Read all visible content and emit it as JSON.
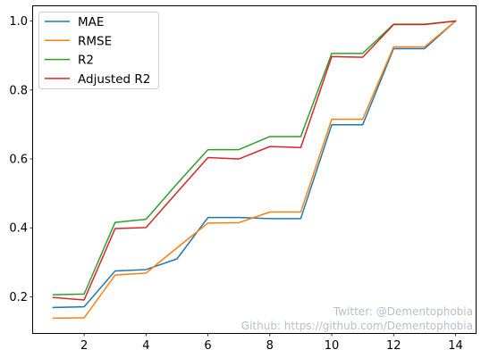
{
  "chart_data": {
    "type": "line",
    "x": [
      1,
      2,
      3,
      4,
      5,
      6,
      7,
      8,
      9,
      10,
      11,
      12,
      13,
      14
    ],
    "series": [
      {
        "name": "MAE",
        "color": "#1f77b4",
        "values": [
          0.169,
          0.171,
          0.275,
          0.279,
          0.31,
          0.43,
          0.43,
          0.427,
          0.427,
          0.699,
          0.699,
          0.92,
          0.92,
          1.0
        ]
      },
      {
        "name": "RMSE",
        "color": "#ff7f0e",
        "values": [
          0.138,
          0.139,
          0.263,
          0.269,
          0.342,
          0.414,
          0.415,
          0.446,
          0.446,
          0.715,
          0.715,
          0.925,
          0.925,
          1.0
        ]
      },
      {
        "name": "R2",
        "color": "#2ca02c",
        "values": [
          0.206,
          0.208,
          0.416,
          0.425,
          0.528,
          0.627,
          0.627,
          0.665,
          0.665,
          0.906,
          0.906,
          0.991,
          0.991,
          1.0
        ]
      },
      {
        "name": "Adjusted R2",
        "color": "#d62728",
        "values": [
          0.198,
          0.191,
          0.398,
          0.401,
          0.503,
          0.604,
          0.6,
          0.636,
          0.633,
          0.897,
          0.895,
          0.99,
          0.99,
          1.0
        ]
      }
    ],
    "xticks": [
      2,
      4,
      6,
      8,
      10,
      12,
      14
    ],
    "xtick_labels": [
      "2",
      "4",
      "6",
      "8",
      "10",
      "12",
      "14"
    ],
    "yticks": [
      0.2,
      0.4,
      0.6,
      0.8,
      1.0
    ],
    "ytick_labels": [
      "0.2",
      "0.4",
      "0.6",
      "0.8",
      "1.0"
    ],
    "xlim": [
      0.35,
      14.65
    ],
    "ylim": [
      0.095,
      1.043
    ],
    "title": "",
    "xlabel": "",
    "ylabel": "",
    "grid": false,
    "legend_position": "top-left"
  },
  "watermark": {
    "line1": "Twitter: @Dementophobia",
    "line2": "Github: https://github.com/Dementophobia"
  }
}
